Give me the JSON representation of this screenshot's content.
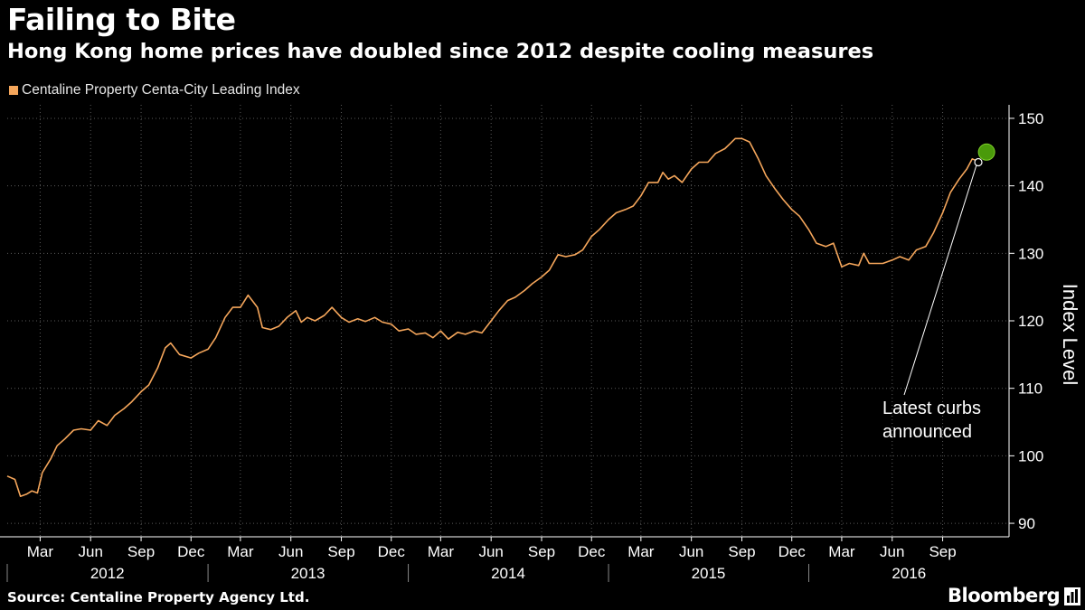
{
  "header": {
    "title": "Failing to Bite",
    "subtitle": "Hong Kong home prices have doubled since 2012 despite cooling measures"
  },
  "footer": {
    "source": "Source: Centaline Property Agency Ltd.",
    "brand": "Bloomberg"
  },
  "colors": {
    "background": "#000000",
    "line": "#f5a65b",
    "grid": "#5a5a5a",
    "axis": "#ffffff",
    "marker": "#4a9a0a"
  },
  "chart_data": {
    "type": "line",
    "title": "Failing to Bite",
    "subtitle": "Hong Kong home prices have doubled since 2012 despite cooling measures",
    "ylabel": "Index Level",
    "ylim": [
      88,
      152
    ],
    "yticks": [
      90,
      100,
      110,
      120,
      130,
      140,
      150
    ],
    "y_axis_position": "right",
    "grid": true,
    "legend": "top-left",
    "x_range": [
      "2012-01-01",
      "2016-12-31"
    ],
    "month_ticks": [
      "Mar",
      "Jun",
      "Sep",
      "Dec",
      "Mar",
      "Jun",
      "Sep",
      "Dec",
      "Mar",
      "Jun",
      "Sep",
      "Dec",
      "Mar",
      "Jun",
      "Sep",
      "Dec",
      "Mar",
      "Jun",
      "Sep"
    ],
    "month_tick_dates": [
      "2012-03-01",
      "2012-06-01",
      "2012-09-01",
      "2012-12-01",
      "2013-03-01",
      "2013-06-01",
      "2013-09-01",
      "2013-12-01",
      "2014-03-01",
      "2014-06-01",
      "2014-09-01",
      "2014-12-01",
      "2015-03-01",
      "2015-06-01",
      "2015-09-01",
      "2015-12-01",
      "2016-03-01",
      "2016-06-01",
      "2016-09-01"
    ],
    "year_labels": [
      "2012",
      "2013",
      "2014",
      "2015",
      "2016"
    ],
    "series": [
      {
        "name": "Centaline Property Centa-City Leading Index",
        "color": "#f5a65b",
        "points": [
          [
            "2012-01-01",
            97.0
          ],
          [
            "2012-01-15",
            96.5
          ],
          [
            "2012-01-25",
            94.0
          ],
          [
            "2012-02-05",
            94.3
          ],
          [
            "2012-02-15",
            94.8
          ],
          [
            "2012-02-25",
            94.5
          ],
          [
            "2012-03-05",
            97.5
          ],
          [
            "2012-03-20",
            99.5
          ],
          [
            "2012-04-01",
            101.5
          ],
          [
            "2012-04-15",
            102.5
          ],
          [
            "2012-05-01",
            103.8
          ],
          [
            "2012-05-15",
            104.0
          ],
          [
            "2012-06-01",
            103.8
          ],
          [
            "2012-06-15",
            105.2
          ],
          [
            "2012-07-01",
            104.5
          ],
          [
            "2012-07-15",
            106.0
          ],
          [
            "2012-08-01",
            107.0
          ],
          [
            "2012-08-15",
            108.0
          ],
          [
            "2012-09-01",
            109.5
          ],
          [
            "2012-09-15",
            110.5
          ],
          [
            "2012-10-01",
            113.0
          ],
          [
            "2012-10-15",
            116.0
          ],
          [
            "2012-10-25",
            116.7
          ],
          [
            "2012-11-10",
            115.0
          ],
          [
            "2012-12-01",
            114.5
          ],
          [
            "2012-12-15",
            115.2
          ],
          [
            "2013-01-01",
            115.8
          ],
          [
            "2013-01-15",
            117.5
          ],
          [
            "2013-02-01",
            120.5
          ],
          [
            "2013-02-15",
            122.0
          ],
          [
            "2013-03-01",
            122.0
          ],
          [
            "2013-03-15",
            123.8
          ],
          [
            "2013-04-01",
            122.0
          ],
          [
            "2013-04-10",
            119.0
          ],
          [
            "2013-04-25",
            118.7
          ],
          [
            "2013-05-10",
            119.2
          ],
          [
            "2013-05-25",
            120.5
          ],
          [
            "2013-06-10",
            121.5
          ],
          [
            "2013-06-20",
            119.8
          ],
          [
            "2013-07-01",
            120.5
          ],
          [
            "2013-07-15",
            120.0
          ],
          [
            "2013-08-01",
            120.8
          ],
          [
            "2013-08-15",
            122.0
          ],
          [
            "2013-09-01",
            120.5
          ],
          [
            "2013-09-15",
            119.8
          ],
          [
            "2013-10-01",
            120.3
          ],
          [
            "2013-10-15",
            119.9
          ],
          [
            "2013-11-01",
            120.5
          ],
          [
            "2013-11-15",
            119.8
          ],
          [
            "2013-12-01",
            119.5
          ],
          [
            "2013-12-15",
            118.5
          ],
          [
            "2014-01-01",
            118.8
          ],
          [
            "2014-01-15",
            118.0
          ],
          [
            "2014-02-01",
            118.2
          ],
          [
            "2014-02-15",
            117.5
          ],
          [
            "2014-03-01",
            118.5
          ],
          [
            "2014-03-15",
            117.3
          ],
          [
            "2014-04-01",
            118.3
          ],
          [
            "2014-04-15",
            118.0
          ],
          [
            "2014-05-01",
            118.5
          ],
          [
            "2014-05-15",
            118.2
          ],
          [
            "2014-06-01",
            120.0
          ],
          [
            "2014-06-15",
            121.5
          ],
          [
            "2014-07-01",
            123.0
          ],
          [
            "2014-07-15",
            123.5
          ],
          [
            "2014-08-01",
            124.5
          ],
          [
            "2014-08-15",
            125.5
          ],
          [
            "2014-09-01",
            126.5
          ],
          [
            "2014-09-15",
            127.5
          ],
          [
            "2014-10-01",
            129.8
          ],
          [
            "2014-10-15",
            129.5
          ],
          [
            "2014-11-01",
            129.8
          ],
          [
            "2014-11-15",
            130.5
          ],
          [
            "2014-12-01",
            132.5
          ],
          [
            "2014-12-15",
            133.5
          ],
          [
            "2015-01-01",
            135.0
          ],
          [
            "2015-01-15",
            136.0
          ],
          [
            "2015-02-01",
            136.5
          ],
          [
            "2015-02-15",
            137.0
          ],
          [
            "2015-03-01",
            138.5
          ],
          [
            "2015-03-15",
            140.5
          ],
          [
            "2015-04-01",
            140.5
          ],
          [
            "2015-04-10",
            142.0
          ],
          [
            "2015-04-20",
            141.0
          ],
          [
            "2015-05-01",
            141.5
          ],
          [
            "2015-05-15",
            140.5
          ],
          [
            "2015-06-01",
            142.5
          ],
          [
            "2015-06-15",
            143.5
          ],
          [
            "2015-07-01",
            143.5
          ],
          [
            "2015-07-15",
            144.8
          ],
          [
            "2015-08-01",
            145.5
          ],
          [
            "2015-08-10",
            146.2
          ],
          [
            "2015-08-20",
            147.0
          ],
          [
            "2015-09-01",
            147.0
          ],
          [
            "2015-09-15",
            146.5
          ],
          [
            "2015-10-01",
            144.0
          ],
          [
            "2015-10-15",
            141.5
          ],
          [
            "2015-11-01",
            139.5
          ],
          [
            "2015-11-15",
            138.0
          ],
          [
            "2015-12-01",
            136.5
          ],
          [
            "2015-12-15",
            135.5
          ],
          [
            "2016-01-01",
            133.5
          ],
          [
            "2016-01-15",
            131.5
          ],
          [
            "2016-02-01",
            131.0
          ],
          [
            "2016-02-15",
            131.5
          ],
          [
            "2016-03-01",
            128.0
          ],
          [
            "2016-03-15",
            128.5
          ],
          [
            "2016-04-01",
            128.2
          ],
          [
            "2016-04-10",
            130.0
          ],
          [
            "2016-04-20",
            128.5
          ],
          [
            "2016-05-15",
            128.5
          ],
          [
            "2016-06-01",
            129.0
          ],
          [
            "2016-06-15",
            129.5
          ],
          [
            "2016-07-01",
            129.0
          ],
          [
            "2016-07-15",
            130.5
          ],
          [
            "2016-08-01",
            131.0
          ],
          [
            "2016-08-15",
            133.0
          ],
          [
            "2016-09-01",
            136.0
          ],
          [
            "2016-09-15",
            139.0
          ],
          [
            "2016-10-01",
            141.0
          ],
          [
            "2016-10-15",
            142.5
          ],
          [
            "2016-10-25",
            144.0
          ],
          [
            "2016-11-05",
            143.6
          ]
        ]
      }
    ],
    "annotations": [
      {
        "text_lines": [
          "Latest curbs",
          "announced"
        ],
        "date": "2016-11-05",
        "value": 143.5
      }
    ],
    "latest_marker": {
      "date": "2016-11-20",
      "value": 145.0
    }
  }
}
